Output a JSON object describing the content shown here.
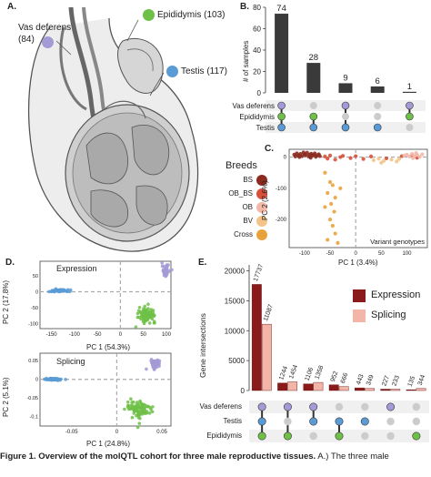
{
  "panel_a": {
    "letter": "A.",
    "labels": [
      {
        "name": "Vas deferens",
        "count": "(84)",
        "color": "#a39bd5"
      },
      {
        "name": "Epididymis",
        "count": "(103)",
        "color": "#6fc046"
      },
      {
        "name": "Testis",
        "count": "(117)",
        "color": "#5a9bd5"
      }
    ]
  },
  "panel_b": {
    "letter": "B.",
    "ylabel": "# of samples",
    "row_labels": [
      "Vas deferens",
      "Epididymis",
      "Testis"
    ],
    "dot_colors": {
      "vas": "#a39bd5",
      "epi": "#6fc046",
      "tes": "#5a9bd5",
      "off": "#cccccc"
    }
  },
  "panel_c": {
    "letter": "C.",
    "legend_title": "Breeds",
    "legend": [
      {
        "name": "BS",
        "color": "#8b2a1e"
      },
      {
        "name": "OB_BS",
        "color": "#d7503c"
      },
      {
        "name": "OB",
        "color": "#f2b8a8"
      },
      {
        "name": "BV",
        "color": "#f2c48a"
      },
      {
        "name": "Cross",
        "color": "#e9a23b"
      }
    ],
    "xlabel": "PC 1 (3.4%)",
    "ylabel": "PC 2 (2.6%)",
    "inner_label": "Variant genotypes"
  },
  "panel_d": {
    "letter": "D.",
    "top": {
      "title": "Expression",
      "xlabel": "PC 1 (54.3%)",
      "ylabel": "PC 2 (17.8%)"
    },
    "bottom": {
      "title": "Splicing",
      "xlabel": "PC 1 (24.8%)",
      "ylabel": "PC 2 (5.1%)"
    }
  },
  "panel_e": {
    "letter": "E.",
    "ylabel": "Gene intersections",
    "legend": [
      {
        "name": "Expression",
        "color": "#8b1a1a"
      },
      {
        "name": "Splicing",
        "color": "#f2b5a8"
      }
    ],
    "row_labels": [
      "Vas deferens",
      "Testis",
      "Epididymis"
    ]
  },
  "caption": {
    "bold": "Figure 1. Overview of the molQTL cohort for three male reproductive tissues.",
    "rest": " A.) The three male"
  },
  "chart_data": [
    {
      "type": "bar",
      "panel": "B",
      "categories": [
        "Vas deferens+Epididymis+Testis",
        "Epididymis+Testis",
        "Vas deferens+Testis",
        "Testis",
        "Vas deferens+Epididymis"
      ],
      "values": [
        74,
        28,
        9,
        6,
        1
      ],
      "ylabel": "# of samples",
      "ylim": [
        0,
        80
      ],
      "yticks": [
        0,
        20,
        40,
        60,
        80
      ],
      "membership": [
        [
          "Vas deferens",
          "Epididymis",
          "Testis"
        ],
        [
          "Epididymis",
          "Testis"
        ],
        [
          "Vas deferens",
          "Testis"
        ],
        [
          "Testis"
        ],
        [
          "Vas deferens",
          "Epididymis"
        ]
      ]
    },
    {
      "type": "scatter",
      "panel": "C",
      "xlabel": "PC 1 (3.4%)",
      "ylabel": "PC 2 (2.6%)",
      "xlim": [
        -130,
        140
      ],
      "ylim": [
        -290,
        25
      ],
      "xticks": [
        -100,
        -50,
        0,
        50,
        100
      ],
      "yticks": [
        0,
        -100,
        -200
      ],
      "series": [
        {
          "name": "BS",
          "color": "#8b2a1e",
          "points": [
            [
              -120,
              8
            ],
            [
              -115,
              12
            ],
            [
              -112,
              5
            ],
            [
              -108,
              10
            ],
            [
              -105,
              3
            ],
            [
              -100,
              9
            ],
            [
              -98,
              6
            ],
            [
              -95,
              14
            ],
            [
              -92,
              2
            ],
            [
              -90,
              8
            ],
            [
              -87,
              11
            ],
            [
              -85,
              4
            ],
            [
              -82,
              7
            ],
            [
              -80,
              12
            ],
            [
              -78,
              1
            ],
            [
              -75,
              6
            ],
            [
              -72,
              9
            ],
            [
              -70,
              3
            ],
            [
              -110,
              0
            ],
            [
              -102,
              15
            ],
            [
              -88,
              -2
            ],
            [
              -118,
              2
            ]
          ]
        },
        {
          "name": "OB_BS",
          "color": "#d7503c",
          "points": [
            [
              -60,
              2
            ],
            [
              -55,
              -5
            ],
            [
              -50,
              5
            ],
            [
              -40,
              -8
            ],
            [
              -30,
              0
            ],
            [
              -25,
              4
            ],
            [
              -10,
              -3
            ],
            [
              0,
              3
            ],
            [
              15,
              -6
            ],
            [
              30,
              2
            ],
            [
              60,
              -4
            ],
            [
              90,
              3
            ],
            [
              110,
              5
            ],
            [
              120,
              -2
            ]
          ]
        },
        {
          "name": "OB",
          "color": "#f2b8a8",
          "points": [
            [
              95,
              5
            ],
            [
              100,
              8
            ],
            [
              105,
              2
            ],
            [
              110,
              10
            ],
            [
              115,
              4
            ],
            [
              120,
              7
            ],
            [
              125,
              1
            ],
            [
              130,
              9
            ],
            [
              112,
              -3
            ],
            [
              118,
              13
            ]
          ]
        },
        {
          "name": "BV",
          "color": "#f2c48a",
          "points": [
            [
              35,
              -10
            ],
            [
              45,
              -5
            ],
            [
              55,
              -12
            ],
            [
              70,
              -8
            ],
            [
              80,
              -14
            ],
            [
              85,
              -6
            ],
            [
              50,
              -18
            ]
          ]
        },
        {
          "name": "Cross",
          "color": "#e9a23b",
          "points": [
            [
              -60,
              -50
            ],
            [
              -50,
              -80
            ],
            [
              -45,
              -90
            ],
            [
              -55,
              -115
            ],
            [
              -40,
              -130
            ],
            [
              -48,
              -150
            ],
            [
              -42,
              -175
            ],
            [
              -50,
              -200
            ],
            [
              -45,
              -220
            ],
            [
              -40,
              -245
            ],
            [
              -55,
              -265
            ],
            [
              -35,
              -275
            ],
            [
              -60,
              -160
            ],
            [
              -30,
              -100
            ]
          ]
        }
      ]
    },
    {
      "type": "scatter",
      "panel": "D-expression",
      "xlabel": "PC 1 (54.3%)",
      "ylabel": "PC 2 (17.8%)",
      "xlim": [
        -175,
        110
      ],
      "ylim": [
        -115,
        95
      ],
      "xticks": [
        -150,
        -100,
        -50,
        0,
        50,
        100
      ],
      "yticks": [
        50,
        0,
        -50,
        -100
      ],
      "series": [
        {
          "name": "Vas deferens",
          "color": "#a39bd5",
          "center": [
            98,
            65
          ],
          "spread": [
            6,
            14
          ],
          "n": 60
        },
        {
          "name": "Testis",
          "color": "#5a9bd5",
          "center": [
            -135,
            3
          ],
          "spread": [
            18,
            3
          ],
          "n": 80
        },
        {
          "name": "Epididymis",
          "color": "#6fc046",
          "center": [
            58,
            -72
          ],
          "spread": [
            15,
            18
          ],
          "n": 90
        }
      ]
    },
    {
      "type": "scatter",
      "panel": "D-splicing",
      "xlabel": "PC 1 (24.8%)",
      "ylabel": "PC 2 (5.1%)",
      "xlim": [
        -0.085,
        0.06
      ],
      "ylim": [
        -0.125,
        0.07
      ],
      "xticks": [
        -0.05,
        0.0,
        0.05
      ],
      "yticks": [
        0.05,
        0.0,
        -0.05,
        -0.1
      ],
      "series": [
        {
          "name": "Vas deferens",
          "color": "#a39bd5",
          "center": [
            0.043,
            0.042
          ],
          "spread": [
            0.004,
            0.01
          ],
          "n": 60
        },
        {
          "name": "Testis",
          "color": "#5a9bd5",
          "center": [
            -0.07,
            0.0
          ],
          "spread": [
            0.007,
            0.002
          ],
          "n": 80
        },
        {
          "name": "Epididymis",
          "color": "#6fc046",
          "center": [
            0.025,
            -0.08
          ],
          "spread": [
            0.012,
            0.02
          ],
          "n": 90
        }
      ]
    },
    {
      "type": "bar",
      "panel": "E",
      "ylabel": "Gene intersections",
      "ylim": [
        0,
        21000
      ],
      "yticks": [
        0,
        5000,
        10000,
        15000,
        20000
      ],
      "categories": [
        "VTE",
        "VE",
        "VT",
        "TE",
        "T",
        "V",
        "E"
      ],
      "membership": [
        [
          "Vas deferens",
          "Testis",
          "Epididymis"
        ],
        [
          "Vas deferens",
          "Epididymis"
        ],
        [
          "Vas deferens",
          "Testis"
        ],
        [
          "Testis",
          "Epididymis"
        ],
        [
          "Testis"
        ],
        [
          "Vas deferens"
        ],
        [
          "Epididymis"
        ]
      ],
      "series": [
        {
          "name": "Expression",
          "color": "#8b1a1a",
          "values": [
            17737,
            1244,
            1106,
            952,
            443,
            227,
            135
          ]
        },
        {
          "name": "Splicing",
          "color": "#f2b5a8",
          "values": [
            11087,
            1454,
            1358,
            666,
            349,
            233,
            344
          ]
        }
      ]
    }
  ]
}
